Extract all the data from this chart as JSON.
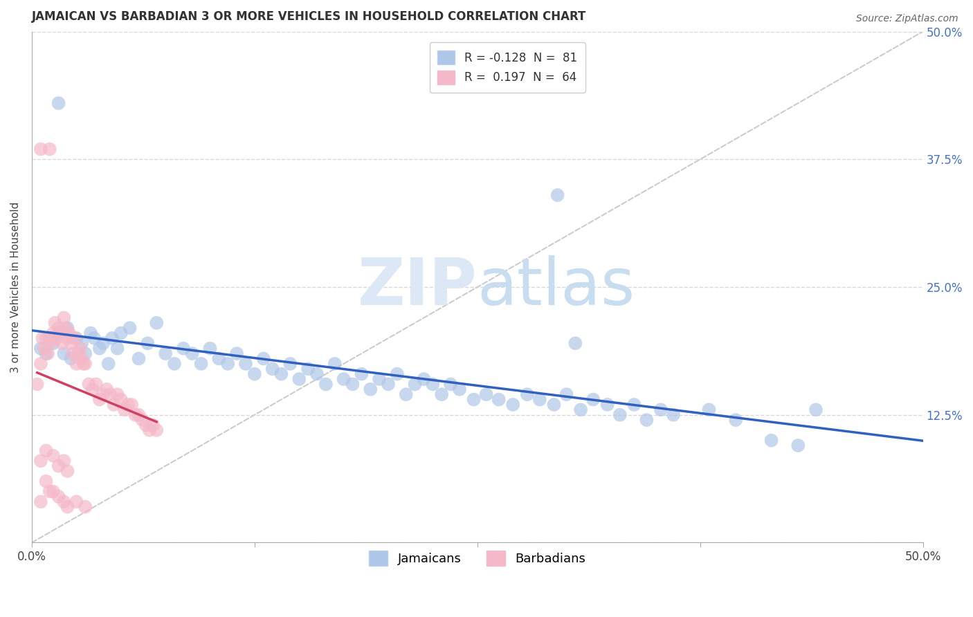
{
  "title": "JAMAICAN VS BARBADIAN 3 OR MORE VEHICLES IN HOUSEHOLD CORRELATION CHART",
  "source": "Source: ZipAtlas.com",
  "ylabel": "3 or more Vehicles in Household",
  "xlim": [
    0.0,
    0.5
  ],
  "ylim": [
    0.0,
    0.5
  ],
  "jamaicans_R": -0.128,
  "jamaicans_N": 81,
  "barbadians_R": 0.197,
  "barbadians_N": 64,
  "jamaican_color": "#aec6e8",
  "barbadian_color": "#f5b8c8",
  "jamaican_line_color": "#3060c0",
  "barbadian_line_color": "#d04060",
  "diagonal_color": "#cccccc",
  "background_color": "#ffffff",
  "grid_color": "#d8d8d8",
  "watermark_color": "#dce8f5",
  "jamaicans_x": [
    0.005,
    0.008,
    0.01,
    0.012,
    0.015,
    0.018,
    0.02,
    0.022,
    0.025,
    0.028,
    0.03,
    0.033,
    0.035,
    0.038,
    0.04,
    0.043,
    0.045,
    0.048,
    0.05,
    0.055,
    0.06,
    0.065,
    0.07,
    0.075,
    0.08,
    0.085,
    0.09,
    0.095,
    0.1,
    0.105,
    0.11,
    0.115,
    0.12,
    0.125,
    0.13,
    0.135,
    0.14,
    0.145,
    0.15,
    0.155,
    0.16,
    0.165,
    0.17,
    0.175,
    0.18,
    0.185,
    0.19,
    0.195,
    0.2,
    0.205,
    0.21,
    0.215,
    0.22,
    0.225,
    0.23,
    0.235,
    0.24,
    0.248,
    0.255,
    0.262,
    0.27,
    0.278,
    0.285,
    0.293,
    0.3,
    0.308,
    0.315,
    0.323,
    0.33,
    0.338,
    0.345,
    0.353,
    0.36,
    0.38,
    0.395,
    0.415,
    0.43,
    0.295,
    0.305,
    0.44,
    0.015
  ],
  "jamaicans_y": [
    0.19,
    0.185,
    0.2,
    0.195,
    0.205,
    0.185,
    0.21,
    0.18,
    0.2,
    0.195,
    0.185,
    0.205,
    0.2,
    0.19,
    0.195,
    0.175,
    0.2,
    0.19,
    0.205,
    0.21,
    0.18,
    0.195,
    0.215,
    0.185,
    0.175,
    0.19,
    0.185,
    0.175,
    0.19,
    0.18,
    0.175,
    0.185,
    0.175,
    0.165,
    0.18,
    0.17,
    0.165,
    0.175,
    0.16,
    0.17,
    0.165,
    0.155,
    0.175,
    0.16,
    0.155,
    0.165,
    0.15,
    0.16,
    0.155,
    0.165,
    0.145,
    0.155,
    0.16,
    0.155,
    0.145,
    0.155,
    0.15,
    0.14,
    0.145,
    0.14,
    0.135,
    0.145,
    0.14,
    0.135,
    0.145,
    0.13,
    0.14,
    0.135,
    0.125,
    0.135,
    0.12,
    0.13,
    0.125,
    0.13,
    0.12,
    0.1,
    0.095,
    0.34,
    0.195,
    0.13,
    0.43
  ],
  "barbadians_x": [
    0.003,
    0.005,
    0.006,
    0.007,
    0.008,
    0.009,
    0.01,
    0.011,
    0.012,
    0.013,
    0.014,
    0.015,
    0.016,
    0.017,
    0.018,
    0.019,
    0.02,
    0.021,
    0.022,
    0.023,
    0.024,
    0.025,
    0.026,
    0.027,
    0.028,
    0.029,
    0.03,
    0.032,
    0.034,
    0.036,
    0.038,
    0.04,
    0.042,
    0.044,
    0.046,
    0.048,
    0.05,
    0.052,
    0.054,
    0.056,
    0.058,
    0.06,
    0.062,
    0.064,
    0.066,
    0.068,
    0.07,
    0.005,
    0.008,
    0.01,
    0.012,
    0.015,
    0.018,
    0.02,
    0.025,
    0.03,
    0.005,
    0.008,
    0.012,
    0.015,
    0.018,
    0.02,
    0.01,
    0.005
  ],
  "barbadians_y": [
    0.155,
    0.175,
    0.2,
    0.19,
    0.2,
    0.185,
    0.195,
    0.2,
    0.205,
    0.215,
    0.2,
    0.21,
    0.205,
    0.195,
    0.22,
    0.21,
    0.2,
    0.205,
    0.195,
    0.185,
    0.2,
    0.175,
    0.185,
    0.19,
    0.18,
    0.175,
    0.175,
    0.155,
    0.15,
    0.155,
    0.14,
    0.145,
    0.15,
    0.145,
    0.135,
    0.145,
    0.14,
    0.13,
    0.135,
    0.135,
    0.125,
    0.125,
    0.12,
    0.115,
    0.11,
    0.115,
    0.11,
    0.04,
    0.06,
    0.05,
    0.05,
    0.045,
    0.04,
    0.035,
    0.04,
    0.035,
    0.08,
    0.09,
    0.085,
    0.075,
    0.08,
    0.07,
    0.385,
    0.385
  ],
  "legend_R_label_blue": "R = -0.128  N =  81",
  "legend_R_label_pink": "R =  0.197  N =  64"
}
